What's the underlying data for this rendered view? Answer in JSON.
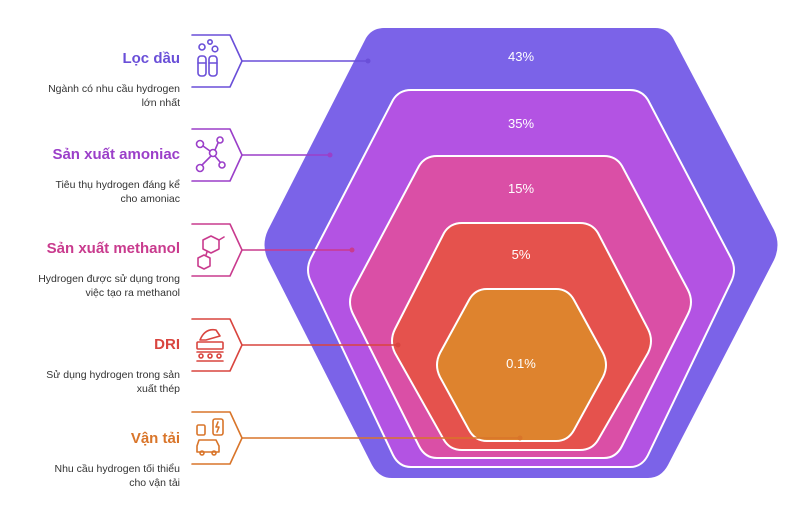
{
  "categories": [
    {
      "id": "loc-dau",
      "title": "Lọc dầu",
      "desc_lines": [
        "Ngành có nhu cầu hydrogen",
        "lớn nhất"
      ],
      "percent": "43%",
      "color": "#7b63e8",
      "accent": "#6a4fd8",
      "icon": "refinery-icon"
    },
    {
      "id": "amoniac",
      "title": "Sản xuất amoniac",
      "desc_lines": [
        "Tiêu thụ hydrogen đáng kể",
        "cho amoniac"
      ],
      "percent": "35%",
      "color": "#b353e3",
      "accent": "#9b3fc9",
      "icon": "molecule-icon"
    },
    {
      "id": "methanol",
      "title": "Sản xuất methanol",
      "desc_lines": [
        "Hydrogen được sử dụng trong",
        "việc tạo ra methanol"
      ],
      "percent": "15%",
      "color": "#da4fa6",
      "accent": "#c93b8e",
      "icon": "chemical-icon"
    },
    {
      "id": "dri",
      "title": "DRI",
      "desc_lines": [
        "Sử dụng hydrogen trong sản",
        "xuất thép"
      ],
      "percent": "5%",
      "color": "#e5524d",
      "accent": "#d9453f",
      "icon": "steel-icon"
    },
    {
      "id": "van-tai",
      "title": "Vận tải",
      "desc_lines": [
        "Nhu cầu hydrogen tối thiểu",
        "cho vận tải"
      ],
      "percent": "0.1%",
      "color": "#de832e",
      "accent": "#d9752a",
      "icon": "vehicle-icon"
    }
  ]
}
